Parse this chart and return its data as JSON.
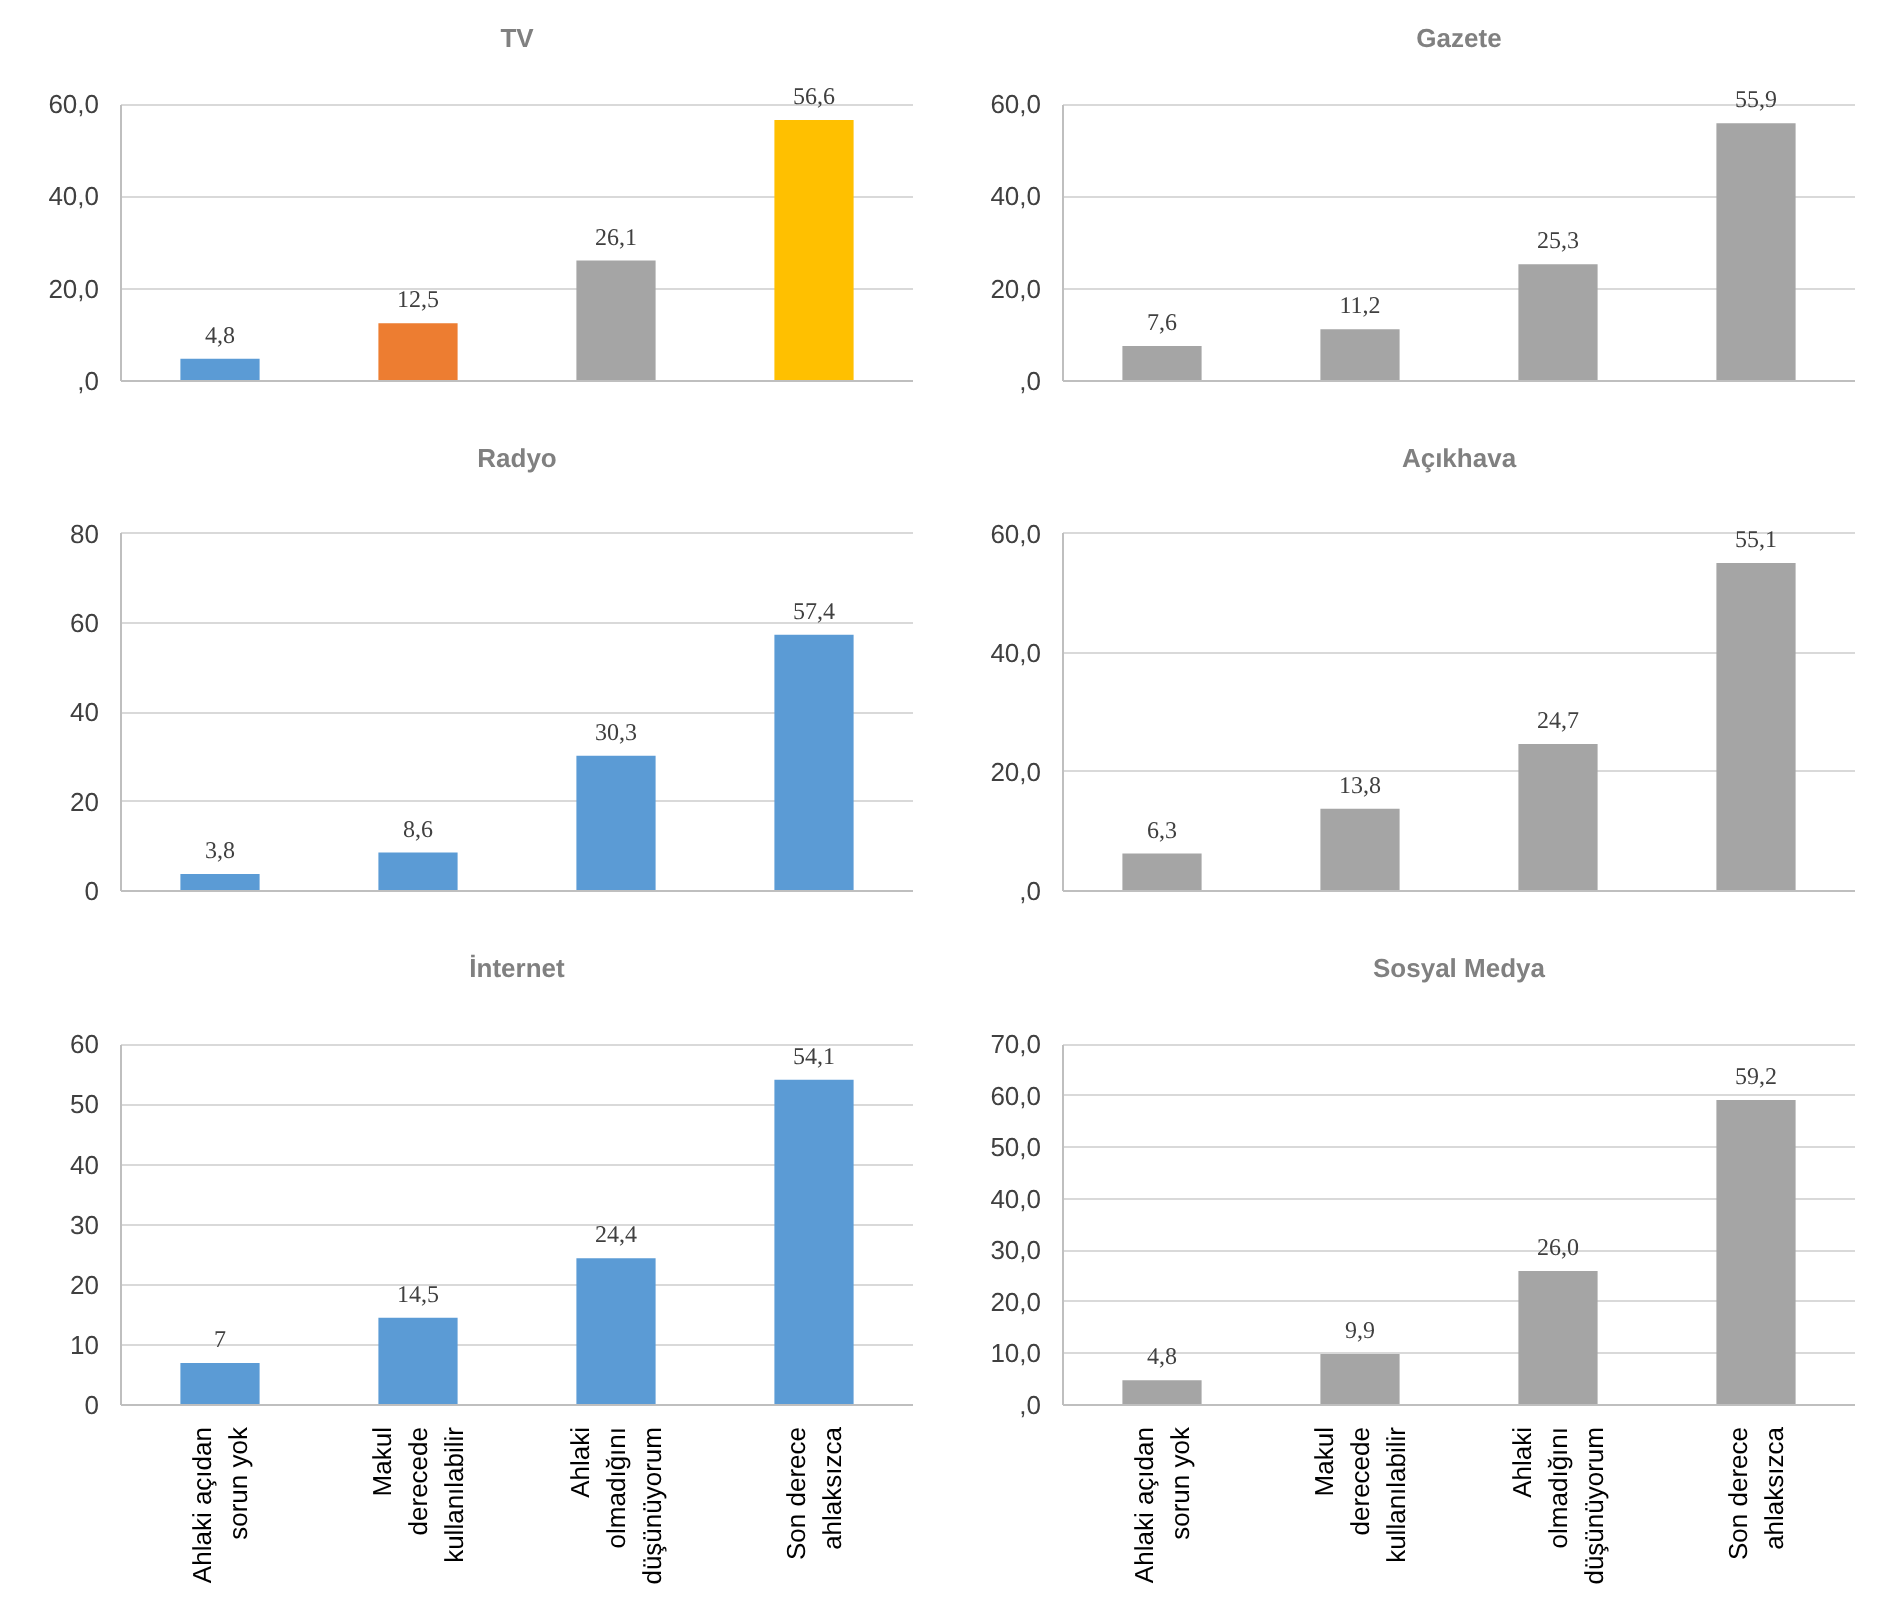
{
  "chart_data": [
    {
      "type": "bar",
      "title": "TV",
      "categories": [
        "Ahlaki açıdan sorun yok",
        "Makul derecede kullanılabilir",
        "Ahlaki olmadığını düşünüyorum",
        "Son derece ahlaksızca"
      ],
      "values": [
        4.8,
        12.5,
        26.1,
        56.6
      ],
      "colors": [
        "#5b9bd5",
        "#ed7d31",
        "#a5a5a5",
        "#ffc000"
      ],
      "value_labels": [
        "4,8",
        "12,5",
        "26,1",
        "56,6"
      ],
      "ylim": [
        0,
        60
      ],
      "yticks": [
        {
          "value": 0,
          "label": ",0"
        },
        {
          "value": 20,
          "label": "20,0"
        },
        {
          "value": 40,
          "label": "40,0"
        },
        {
          "value": 60,
          "label": "60,0"
        }
      ],
      "grid": "y",
      "tick_labels": "y"
    },
    {
      "type": "bar",
      "title": "Gazete",
      "categories": [
        "Ahlaki açıdan sorun yok",
        "Makul derecede kullanılabilir",
        "Ahlaki olmadığını düşünüyorum",
        "Son derece ahlaksızca"
      ],
      "values": [
        7.6,
        11.2,
        25.3,
        55.9
      ],
      "color": "#a5a5a5",
      "value_labels": [
        "7,6",
        "11,2",
        "25,3",
        "55,9"
      ],
      "ylim": [
        0,
        60
      ],
      "yticks": [
        {
          "value": 0,
          "label": ",0"
        },
        {
          "value": 20,
          "label": "20,0"
        },
        {
          "value": 40,
          "label": "40,0"
        },
        {
          "value": 60,
          "label": "60,0"
        }
      ],
      "grid": "y",
      "tick_labels": "y"
    },
    {
      "type": "bar",
      "title": "Radyo",
      "categories": [
        "Ahlaki açıdan sorun yok",
        "Makul derecede kullanılabilir",
        "Ahlaki olmadığını düşünüyorum",
        "Son derece ahlaksızca"
      ],
      "values": [
        3.8,
        8.6,
        30.3,
        57.4
      ],
      "color": "#5b9bd5",
      "value_labels": [
        "3,8",
        "8,6",
        "30,3",
        "57,4"
      ],
      "ylim": [
        0,
        80
      ],
      "yticks": [
        0,
        20,
        40,
        60,
        80
      ],
      "grid": "y",
      "tick_labels": "y"
    },
    {
      "type": "bar",
      "title": "Açıkhava",
      "categories": [
        "Ahlaki açıdan sorun yok",
        "Makul derecede kullanılabilir",
        "Ahlaki olmadığını düşünüyorum",
        "Son derece ahlaksızca"
      ],
      "values": [
        6.3,
        13.8,
        24.7,
        55.1
      ],
      "color": "#a5a5a5",
      "value_labels": [
        "6,3",
        "13,8",
        "24,7",
        "55,1"
      ],
      "ylim": [
        0,
        60
      ],
      "yticks": [
        {
          "value": 0,
          "label": ",0"
        },
        {
          "value": 20,
          "label": "20,0"
        },
        {
          "value": 40,
          "label": "40,0"
        },
        {
          "value": 60,
          "label": "60,0"
        }
      ],
      "grid": "y",
      "tick_labels": "y"
    },
    {
      "type": "bar",
      "title": "İnternet",
      "categories": [
        "Ahlaki açıdan sorun yok",
        "Makul derecede kullanılabilir",
        "Ahlaki olmadığını düşünüyorum",
        "Son derece ahlaksızca"
      ],
      "values": [
        7,
        14.5,
        24.4,
        54.1
      ],
      "color": "#5b9bd5",
      "value_labels": [
        "7",
        "14,5",
        "24,4",
        "54,1"
      ],
      "ylim": [
        0,
        60
      ],
      "yticks": [
        0,
        10,
        20,
        30,
        40,
        50,
        60
      ],
      "grid": "y"
    },
    {
      "type": "bar",
      "title": "Sosyal Medya",
      "categories": [
        "Ahlaki açıdan sorun yok",
        "Makul derecede kullanılabilir",
        "Ahlaki olmadığını düşünüyorum",
        "Son derece ahlaksızca"
      ],
      "values": [
        4.8,
        9.9,
        26.0,
        59.2
      ],
      "color": "#a5a5a5",
      "value_labels": [
        "4,8",
        "9,9",
        "26,0",
        "59,2"
      ],
      "ylim": [
        0,
        70
      ],
      "yticks": [
        {
          "value": 0,
          "label": ",0"
        },
        {
          "value": 10,
          "label": "10,0"
        },
        {
          "value": 20,
          "label": "20,0"
        },
        {
          "value": 30,
          "label": "30,0"
        },
        {
          "value": 40,
          "label": "40,0"
        },
        {
          "value": 50,
          "label": "50,0"
        },
        {
          "value": 60,
          "label": "60,0"
        },
        {
          "value": 70,
          "label": "70,0"
        }
      ],
      "grid": "y"
    }
  ]
}
